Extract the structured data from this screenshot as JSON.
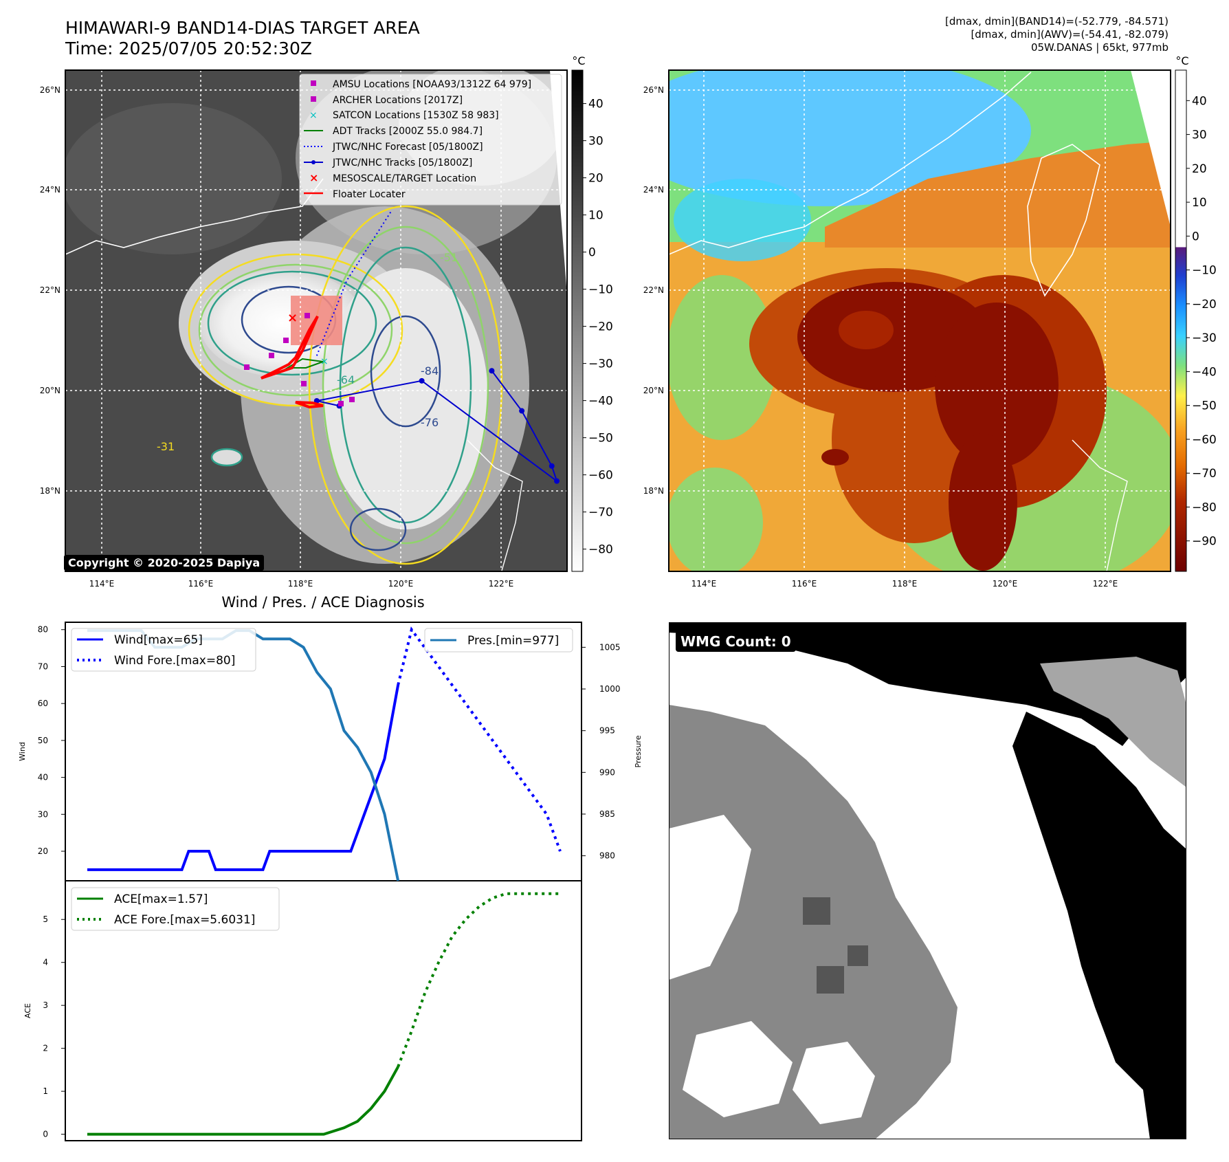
{
  "title": {
    "line1": "HIMAWARI-9 BAND14-DIAS TARGET AREA",
    "line2": "Time: 2025/07/05 20:52:30Z"
  },
  "info": {
    "line1": "[dmax, dmin](BAND14)=(-52.779, -84.571)",
    "line2": "[dmax, dmin](AWV)=(-54.41, -82.079)",
    "line3": "05W.DANAS | 65kt, 977mb"
  },
  "copyright": "Copyright © 2020-2025 Dapiya",
  "wmg_label": "WMG Count: 0",
  "diagnosis_title": "Wind / Pres. / ACE Diagnosis",
  "colors": {
    "wind": "#0000ff",
    "pressure": "#1f77b4",
    "ace": "#008000",
    "track": "#0000cd",
    "red": "#ff0000",
    "magenta": "#c000c0",
    "cyan": "#00c0c0",
    "adt": "#008000"
  },
  "maps": {
    "lon_ticks": [
      "114°E",
      "116°E",
      "118°E",
      "120°E",
      "122°E"
    ],
    "lat_ticks": [
      "26°N",
      "24°N",
      "22°N",
      "20°N",
      "18°N"
    ],
    "legend": [
      "AMSU Locations [NOAA93/1312Z 64 979]",
      "ARCHER Locations [2017Z]",
      "SATCON Locations [1530Z 58 983]",
      "ADT Tracks [2000Z 55.0 984.7]",
      "JTWC/NHC Forecast [05/1800Z]",
      "JTWC/NHC Tracks [05/1800Z]",
      "MESOSCALE/TARGET Location",
      "Floater Locater"
    ],
    "contour_labels": [
      "-31",
      "-51",
      "-64",
      "-76",
      "-84"
    ],
    "colorbar_left": {
      "unit": "°C",
      "ticks": [
        "40",
        "30",
        "20",
        "10",
        "0",
        "−10",
        "−20",
        "−30",
        "−40",
        "−50",
        "−60",
        "−70",
        "−80"
      ]
    },
    "colorbar_right": {
      "unit": "°C",
      "ticks": [
        "40",
        "30",
        "20",
        "10",
        "0",
        "−10",
        "−20",
        "−30",
        "−40",
        "−50",
        "−60",
        "−70",
        "−80",
        "−90"
      ]
    },
    "track_points": [
      [
        121.8,
        20.4
      ],
      [
        122.4,
        19.6
      ],
      [
        123.0,
        18.5
      ],
      [
        123.1,
        18.2
      ],
      [
        120.4,
        20.2
      ],
      [
        118.3,
        19.8
      ],
      [
        118.75,
        19.7
      ]
    ],
    "forecast_track": [
      [
        118.3,
        20.7
      ],
      [
        118.9,
        22.2
      ],
      [
        119.8,
        23.6
      ]
    ]
  },
  "chart_data": [
    {
      "type": "line",
      "ylabel": "Wind",
      "ylabel_right": "Pressure",
      "ylim": [
        12,
        82
      ],
      "ylim_right": [
        977,
        1008
      ],
      "yticks": [
        20,
        30,
        40,
        50,
        60,
        70,
        80
      ],
      "yticks_right": [
        980,
        985,
        990,
        995,
        1000,
        1005
      ],
      "series": [
        {
          "name": "Wind[max=65]",
          "axis": "left",
          "x": [
            0,
            1,
            2,
            3,
            4,
            5,
            6,
            7,
            8,
            9,
            10,
            11,
            12,
            13,
            14,
            15,
            16,
            17,
            18,
            19,
            20,
            21,
            22,
            23,
            24,
            25,
            26,
            27,
            28,
            29,
            30,
            31,
            32,
            33,
            34,
            35,
            36,
            37,
            38,
            39,
            40,
            41,
            42,
            43,
            44,
            45,
            46
          ],
          "values": [
            15,
            15,
            15,
            15,
            15,
            15,
            15,
            15,
            15,
            15,
            15,
            15,
            15,
            15,
            15,
            20,
            20,
            20,
            20,
            15,
            15,
            15,
            15,
            15,
            15,
            15,
            15,
            20,
            20,
            20,
            20,
            20,
            20,
            20,
            20,
            20,
            20,
            20,
            20,
            20,
            25,
            30,
            35,
            40,
            45,
            55,
            65
          ]
        },
        {
          "name": "Wind Fore.[max=80]",
          "axis": "left",
          "x": [
            46,
            48,
            50,
            52,
            54,
            56,
            58,
            60,
            62,
            64,
            66,
            68,
            70
          ],
          "values": [
            65,
            80,
            75,
            70,
            65,
            60,
            55,
            50,
            45,
            40,
            35,
            30,
            20
          ]
        },
        {
          "name": "Pres.[min=977]",
          "axis": "right",
          "x": [
            0,
            4,
            8,
            10,
            12,
            14,
            16,
            18,
            20,
            22,
            24,
            26,
            28,
            30,
            32,
            34,
            36,
            38,
            40,
            42,
            44,
            46
          ],
          "values": [
            1007,
            1007,
            1007,
            1005,
            1005,
            1005,
            1006,
            1006,
            1006,
            1007,
            1007,
            1006,
            1006,
            1006,
            1005,
            1002,
            1000,
            995,
            993,
            990,
            985,
            977
          ]
        }
      ]
    },
    {
      "type": "line",
      "ylabel": "ACE",
      "ylim": [
        -0.15,
        5.9
      ],
      "yticks": [
        0,
        1,
        2,
        3,
        4,
        5
      ],
      "series": [
        {
          "name": "ACE[max=1.57]",
          "x": [
            0,
            10,
            20,
            30,
            35,
            38,
            40,
            42,
            44,
            46
          ],
          "values": [
            0,
            0,
            0,
            0,
            0,
            0.15,
            0.3,
            0.6,
            1.0,
            1.57
          ]
        },
        {
          "name": "ACE Fore.[max=5.6031]",
          "x": [
            46,
            48,
            50,
            52,
            54,
            56,
            58,
            60,
            62,
            64,
            66,
            68,
            70
          ],
          "values": [
            1.57,
            2.4,
            3.3,
            4.0,
            4.6,
            5.0,
            5.3,
            5.5,
            5.6,
            5.6,
            5.6,
            5.6,
            5.6
          ]
        }
      ]
    }
  ]
}
